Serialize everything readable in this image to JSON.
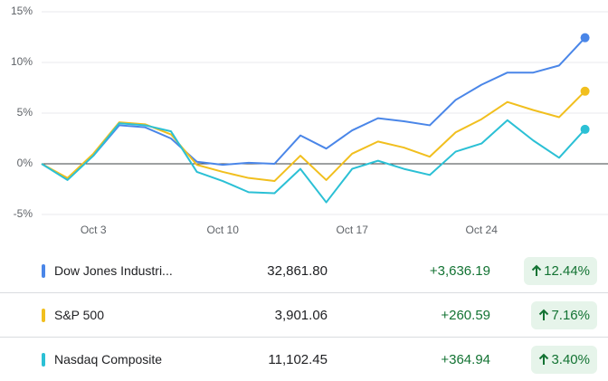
{
  "chart_data": {
    "type": "line",
    "categories": [
      null,
      null,
      "Oct 3",
      null,
      null,
      null,
      null,
      "Oct 10",
      null,
      null,
      null,
      null,
      "Oct 17",
      null,
      null,
      null,
      null,
      "Oct 24",
      null,
      null,
      null,
      null
    ],
    "series": [
      {
        "name": "Dow Jones Industri...",
        "color": "#4a86e8",
        "values": [
          0,
          -1.5,
          0.8,
          3.8,
          3.6,
          2.5,
          0.2,
          -0.1,
          0.1,
          0,
          2.8,
          1.5,
          3.3,
          4.5,
          4.2,
          3.8,
          6.3,
          7.8,
          9.0,
          9.0,
          9.7,
          12.44
        ]
      },
      {
        "name": "S&P 500",
        "color": "#f1bf1e",
        "values": [
          0,
          -1.4,
          1.0,
          4.1,
          3.9,
          2.9,
          -0.1,
          -0.8,
          -1.4,
          -1.7,
          0.8,
          -1.6,
          1.0,
          2.2,
          1.6,
          0.7,
          3.1,
          4.4,
          6.1,
          5.3,
          4.6,
          7.16
        ]
      },
      {
        "name": "Nasdaq Composite",
        "color": "#2bc0d5",
        "values": [
          0,
          -1.6,
          0.8,
          4.0,
          3.8,
          3.2,
          -0.8,
          -1.7,
          -2.8,
          -2.9,
          -0.5,
          -3.8,
          -0.5,
          0.3,
          -0.5,
          -1.1,
          1.2,
          2.0,
          4.3,
          2.3,
          0.6,
          3.4
        ]
      }
    ],
    "ylim": [
      -6,
      15.5
    ],
    "yticks": [
      {
        "value": 15,
        "label": "15%"
      },
      {
        "value": 10,
        "label": "10%"
      },
      {
        "value": 5,
        "label": "5%"
      },
      {
        "value": 0,
        "label": "0%"
      },
      {
        "value": -5,
        "label": "-5%"
      }
    ],
    "grid": true
  },
  "table": {
    "rows": [
      [
        "Dow Jones Industri...",
        "32,861.80",
        "+3,636.19",
        "12.44%"
      ],
      [
        "S&P 500",
        "3,901.06",
        "+260.59",
        "7.16%"
      ],
      [
        "Nasdaq Composite",
        "11,102.45",
        "+364.94",
        "3.40%"
      ]
    ]
  }
}
